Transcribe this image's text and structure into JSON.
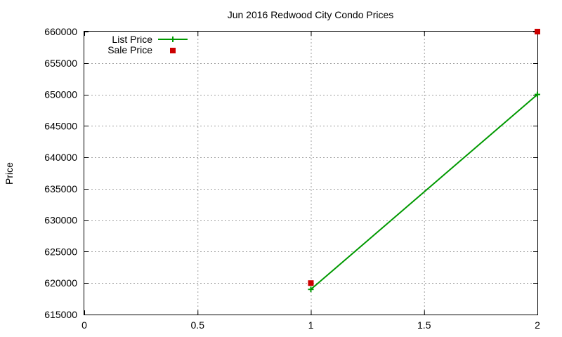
{
  "chart_data": {
    "type": "line",
    "title": "Jun 2016 Redwood City Condo Prices",
    "xlabel": "",
    "ylabel": "Price",
    "xlim": [
      0,
      2
    ],
    "ylim": [
      615000,
      660000
    ],
    "x_ticks": [
      0,
      0.5,
      1,
      1.5,
      2
    ],
    "y_ticks": [
      615000,
      620000,
      625000,
      630000,
      635000,
      640000,
      645000,
      650000,
      655000,
      660000
    ],
    "grid": true,
    "legend_position": "top-left",
    "series": [
      {
        "name": "List Price",
        "style": "lines+points",
        "marker": "plus",
        "color": "#009900",
        "x": [
          1,
          2
        ],
        "y": [
          619000,
          650000
        ]
      },
      {
        "name": "Sale Price",
        "style": "points",
        "marker": "square",
        "color": "#cc0000",
        "x": [
          1,
          2
        ],
        "y": [
          620000,
          660000
        ]
      }
    ]
  }
}
